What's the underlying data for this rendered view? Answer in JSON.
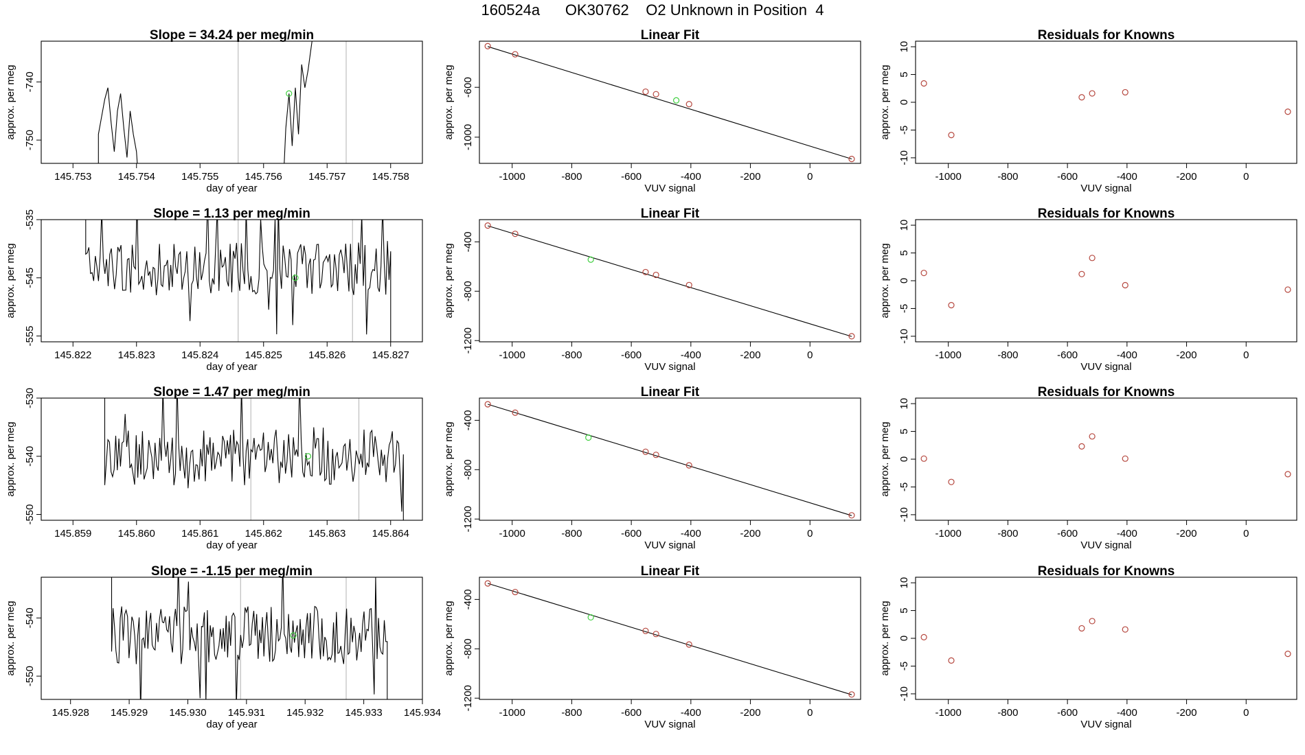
{
  "figure": {
    "title": "160524a      OK30762    O2 Unknown in Position  4"
  },
  "colors": {
    "trace": "#000000",
    "fit_line": "#000000",
    "known_points": "#b5473e",
    "unknown_point": "#3fcf3f",
    "window_markers": "#bdbdbd",
    "frame": "#000000"
  },
  "chart_data": [
    {
      "type": "line",
      "panel": "time-series",
      "row": 1,
      "title": "Slope =  34.24  per meg/min",
      "xlabel": "day of year",
      "ylabel": "approx. per meg",
      "xlim": [
        145.7525,
        145.7585
      ],
      "ylim": [
        -754,
        -733
      ],
      "xticks": [
        145.753,
        145.754,
        145.755,
        145.756,
        145.757,
        145.758
      ],
      "xtick_labels": [
        "145.753",
        "145.754",
        "145.755",
        "145.756",
        "145.757",
        "145.758"
      ],
      "yticks": [
        -740,
        -750
      ],
      "ytick_labels": [
        "-740",
        "-750"
      ],
      "vlines": [
        145.7556,
        145.7573
      ],
      "segments": [
        [
          [
            145.7534,
            -760
          ],
          [
            145.7534,
            -749
          ],
          [
            145.75345,
            -746
          ],
          [
            145.7535,
            -743
          ],
          [
            145.75355,
            -741
          ],
          [
            145.7536,
            -747
          ],
          [
            145.75365,
            -752
          ],
          [
            145.7537,
            -745
          ],
          [
            145.75375,
            -742
          ],
          [
            145.7538,
            -748
          ],
          [
            145.75385,
            -753
          ],
          [
            145.7539,
            -745
          ],
          [
            145.75395,
            -749
          ],
          [
            145.754,
            -752
          ],
          [
            145.75405,
            -760
          ]
        ],
        [
          [
            145.7563,
            -760
          ],
          [
            145.75635,
            -748
          ],
          [
            145.7564,
            -742
          ],
          [
            145.75645,
            -751
          ],
          [
            145.7565,
            -741
          ],
          [
            145.75655,
            -749
          ],
          [
            145.7566,
            -737
          ],
          [
            145.75665,
            -741
          ],
          [
            145.7567,
            -738
          ],
          [
            145.75675,
            -734
          ],
          [
            145.7568,
            -730
          ]
        ]
      ],
      "unknown": {
        "x": 145.7564,
        "y": -742
      }
    },
    {
      "type": "line",
      "panel": "time-series",
      "row": 2,
      "title": "Slope =  1.13  per meg/min",
      "xlabel": "day of year",
      "ylabel": "approx. per meg",
      "xlim": [
        145.8215,
        145.8275
      ],
      "ylim": [
        -556,
        -535
      ],
      "xticks": [
        145.822,
        145.823,
        145.824,
        145.825,
        145.826,
        145.827
      ],
      "xtick_labels": [
        "145.822",
        "145.823",
        "145.824",
        "145.825",
        "145.826",
        "145.827"
      ],
      "yticks": [
        -535,
        -545,
        -555
      ],
      "ytick_labels": [
        "-535",
        "-545",
        "-555"
      ],
      "vlines": [
        145.8246,
        145.8264
      ],
      "seed": 2,
      "x_start": 145.8222,
      "x_end": 145.827,
      "y_center": -543.5,
      "y_amp": 4.5,
      "unknown": {
        "x": 145.8255,
        "y": -545
      }
    },
    {
      "type": "line",
      "panel": "time-series",
      "row": 3,
      "title": "Slope =  1.47  per meg/min",
      "xlabel": "day of year",
      "ylabel": "approx. per meg",
      "xlim": [
        145.8585,
        145.8645
      ],
      "ylim": [
        -551,
        -530
      ],
      "xticks": [
        145.859,
        145.86,
        145.861,
        145.862,
        145.863,
        145.864
      ],
      "xtick_labels": [
        "145.859",
        "145.860",
        "145.861",
        "145.862",
        "145.863",
        "145.864"
      ],
      "yticks": [
        -530,
        -540,
        -550
      ],
      "ytick_labels": [
        "-530",
        "-540",
        "-550"
      ],
      "vlines": [
        145.8618,
        145.8635
      ],
      "seed": 3,
      "x_start": 145.8595,
      "x_end": 145.8642,
      "y_center": -540,
      "y_amp": 5,
      "unknown": {
        "x": 145.8627,
        "y": -540
      }
    },
    {
      "type": "line",
      "panel": "time-series",
      "row": 4,
      "title": "Slope =  -1.15  per meg/min",
      "xlabel": "day of year",
      "ylabel": "approx. per meg",
      "xlim": [
        145.9275,
        145.934
      ],
      "ylim": [
        -554,
        -533
      ],
      "xticks": [
        145.928,
        145.929,
        145.93,
        145.931,
        145.932,
        145.933,
        145.934
      ],
      "xtick_labels": [
        "145.928",
        "145.929",
        "145.930",
        "145.931",
        "145.932",
        "145.933",
        "145.934"
      ],
      "yticks": [
        -540,
        -550
      ],
      "ytick_labels": [
        "-540",
        "-550"
      ],
      "vlines": [
        145.9309,
        145.9327
      ],
      "seed": 4,
      "x_start": 145.9287,
      "x_end": 145.9334,
      "y_center": -543,
      "y_amp": 5,
      "unknown": {
        "x": 145.9318,
        "y": -543
      }
    },
    {
      "type": "scatter",
      "panel": "linear-fit",
      "row": 1,
      "title": "Linear Fit",
      "xlabel": "VUV signal",
      "ylabel": "approx. per meg",
      "xlim": [
        -1110,
        170
      ],
      "ylim": [
        -1210,
        -230
      ],
      "xticks": [
        -1000,
        -800,
        -600,
        -400,
        -200,
        0
      ],
      "xtick_labels": [
        "-1000",
        "-800",
        "-600",
        "-400",
        "-200",
        "0"
      ],
      "yticks": [
        -600,
        -1000
      ],
      "ytick_labels": [
        "-600",
        "-1000"
      ],
      "known_x": [
        -1082,
        -990,
        -552,
        -517,
        -406,
        140
      ],
      "known_y": [
        -270,
        -335,
        -635,
        -655,
        -735,
        -1175
      ],
      "unknown": {
        "x": -449,
        "y": -705
      },
      "fit_x": [
        -1082,
        140
      ],
      "fit_y": [
        -273,
        -1175
      ]
    },
    {
      "type": "scatter",
      "panel": "linear-fit",
      "row": 2,
      "title": "Linear Fit",
      "xlabel": "VUV signal",
      "ylabel": "approx. per meg",
      "xlim": [
        -1110,
        170
      ],
      "ylim": [
        -1210,
        -220
      ],
      "xticks": [
        -1000,
        -800,
        -600,
        -400,
        -200,
        0
      ],
      "xtick_labels": [
        "-1000",
        "-800",
        "-600",
        "-400",
        "-200",
        "0"
      ],
      "yticks": [
        -400,
        -800,
        -1200
      ],
      "ytick_labels": [
        "-400",
        "-800",
        "-1200"
      ],
      "known_x": [
        -1082,
        -990,
        -552,
        -517,
        -406,
        140
      ],
      "known_y": [
        -268,
        -335,
        -645,
        -668,
        -750,
        -1165
      ],
      "unknown": {
        "x": -736,
        "y": -544
      },
      "fit_x": [
        -1082,
        140
      ],
      "fit_y": [
        -270,
        -1167
      ]
    },
    {
      "type": "scatter",
      "panel": "linear-fit",
      "row": 3,
      "title": "Linear Fit",
      "xlabel": "VUV signal",
      "ylabel": "approx. per meg",
      "xlim": [
        -1110,
        170
      ],
      "ylim": [
        -1210,
        -220
      ],
      "xticks": [
        -1000,
        -800,
        -600,
        -400,
        -200,
        0
      ],
      "xtick_labels": [
        "-1000",
        "-800",
        "-600",
        "-400",
        "-200",
        "0"
      ],
      "yticks": [
        -400,
        -800,
        -1200
      ],
      "ytick_labels": [
        "-400",
        "-800",
        "-1200"
      ],
      "known_x": [
        -1082,
        -990,
        -552,
        -517,
        -406,
        140
      ],
      "known_y": [
        -270,
        -338,
        -655,
        -680,
        -765,
        -1170
      ],
      "unknown": {
        "x": -744,
        "y": -540
      },
      "fit_x": [
        -1082,
        140
      ],
      "fit_y": [
        -270,
        -1172
      ]
    },
    {
      "type": "scatter",
      "panel": "linear-fit",
      "row": 4,
      "title": "Linear Fit",
      "xlabel": "VUV signal",
      "ylabel": "approx. per meg",
      "xlim": [
        -1110,
        170
      ],
      "ylim": [
        -1210,
        -220
      ],
      "xticks": [
        -1000,
        -800,
        -600,
        -400,
        -200,
        0
      ],
      "xtick_labels": [
        "-1000",
        "-800",
        "-600",
        "-400",
        "-200",
        "0"
      ],
      "yticks": [
        -400,
        -800,
        -1200
      ],
      "ytick_labels": [
        "-400",
        "-800",
        "-1200"
      ],
      "known_x": [
        -1082,
        -990,
        -552,
        -517,
        -406,
        140
      ],
      "known_y": [
        -270,
        -340,
        -655,
        -680,
        -765,
        -1170
      ],
      "unknown": {
        "x": -736,
        "y": -545
      },
      "fit_x": [
        -1082,
        140
      ],
      "fit_y": [
        -270,
        -1172
      ]
    },
    {
      "type": "scatter",
      "panel": "residuals",
      "row": 1,
      "title": "Residuals for Knowns",
      "xlabel": "VUV signal",
      "ylabel": "approx. per meg",
      "xlim": [
        -1110,
        170
      ],
      "ylim": [
        -11,
        11
      ],
      "xticks": [
        -1000,
        -800,
        -600,
        -400,
        -200,
        0
      ],
      "xtick_labels": [
        "-1000",
        "-800",
        "-600",
        "-400",
        "-200",
        "0"
      ],
      "yticks": [
        10,
        5,
        0,
        -5,
        -10
      ],
      "ytick_labels": [
        "10",
        "5",
        "0",
        "-5",
        "-10"
      ],
      "known_x": [
        -1082,
        -990,
        -552,
        -517,
        -406,
        140
      ],
      "values": [
        3.4,
        -5.9,
        0.9,
        1.6,
        1.8,
        -1.7
      ]
    },
    {
      "type": "scatter",
      "panel": "residuals",
      "row": 2,
      "title": "Residuals for Knowns",
      "xlabel": "VUV signal",
      "ylabel": "approx. per meg",
      "xlim": [
        -1110,
        170
      ],
      "ylim": [
        -11,
        11
      ],
      "xticks": [
        -1000,
        -800,
        -600,
        -400,
        -200,
        0
      ],
      "xtick_labels": [
        "-1000",
        "-800",
        "-600",
        "-400",
        "-200",
        "0"
      ],
      "yticks": [
        10,
        5,
        0,
        -5,
        -10
      ],
      "ytick_labels": [
        "10",
        "5",
        "0",
        "-5",
        "-10"
      ],
      "known_x": [
        -1082,
        -990,
        -552,
        -517,
        -406,
        140
      ],
      "values": [
        1.4,
        -4.4,
        1.2,
        4.1,
        -0.8,
        -1.6
      ]
    },
    {
      "type": "scatter",
      "panel": "residuals",
      "row": 3,
      "title": "Residuals for Knowns",
      "xlabel": "VUV signal",
      "ylabel": "approx. per meg",
      "xlim": [
        -1110,
        170
      ],
      "ylim": [
        -11,
        11
      ],
      "xticks": [
        -1000,
        -800,
        -600,
        -400,
        -200,
        0
      ],
      "xtick_labels": [
        "-1000",
        "-800",
        "-600",
        "-400",
        "-200",
        "0"
      ],
      "yticks": [
        10,
        5,
        0,
        -5,
        -10
      ],
      "ytick_labels": [
        "10",
        "5",
        "0",
        "-5",
        "-10"
      ],
      "known_x": [
        -1082,
        -990,
        -552,
        -517,
        -406,
        140
      ],
      "values": [
        0.1,
        -4.1,
        2.3,
        4.1,
        0.1,
        -2.7
      ]
    },
    {
      "type": "scatter",
      "panel": "residuals",
      "row": 4,
      "title": "Residuals for Knowns",
      "xlabel": "VUV signal",
      "ylabel": "approx. per meg",
      "xlim": [
        -1110,
        170
      ],
      "ylim": [
        -11,
        11
      ],
      "xticks": [
        -1000,
        -800,
        -600,
        -400,
        -200,
        0
      ],
      "xtick_labels": [
        "-1000",
        "-800",
        "-600",
        "-400",
        "-200",
        "0"
      ],
      "yticks": [
        10,
        5,
        0,
        -5,
        -10
      ],
      "ytick_labels": [
        "10",
        "5",
        "0",
        "-5",
        "-10"
      ],
      "known_x": [
        -1082,
        -990,
        -552,
        -517,
        -406,
        140
      ],
      "values": [
        0.2,
        -4.0,
        1.8,
        3.1,
        1.6,
        -2.8
      ]
    }
  ]
}
